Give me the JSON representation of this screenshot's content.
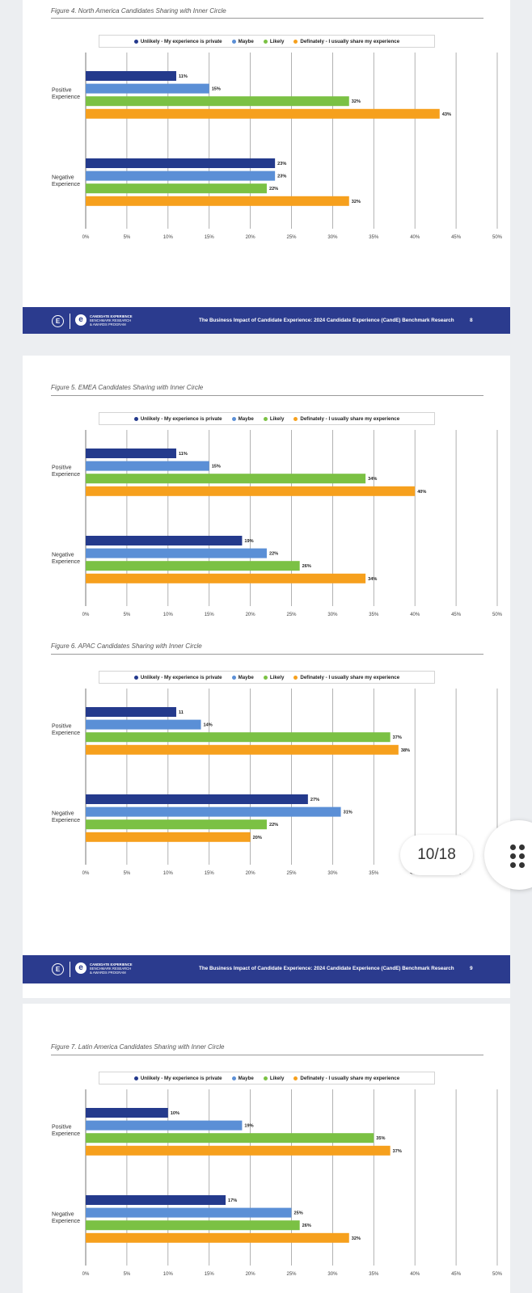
{
  "legend": [
    {
      "label": "Unlikely - My experience is private",
      "color": "#243a8c"
    },
    {
      "label": "Maybe",
      "color": "#5b8fd6"
    },
    {
      "label": "Likely",
      "color": "#7bc144"
    },
    {
      "label": "Definately - I usually share my experience",
      "color": "#f6a01d"
    }
  ],
  "footer": {
    "logo_letter": "E",
    "brand_line1": "CANDIDATE EXPERIENCE",
    "brand_line2": "BENCHMARK RESEARCH",
    "brand_line3": "& AWARDS PROGRAM",
    "title": "The Business Impact of Candidate Experience:  2024 Candidate Experience (CandE) Benchmark Research",
    "page_8": "8",
    "page_9": "9"
  },
  "viewer": {
    "page_indicator": "10/18",
    "menu_icon": "grid-dots-icon"
  },
  "chart_data": [
    {
      "type": "bar",
      "title": "Figure 4. North America Candidates Sharing with Inner Circle",
      "categories": [
        "Positive Experience",
        "Negative Experience"
      ],
      "series": [
        {
          "name": "Unlikely - My experience is private",
          "values": [
            11,
            23
          ],
          "labels": [
            "11%",
            "23%"
          ]
        },
        {
          "name": "Maybe",
          "values": [
            15,
            23
          ],
          "labels": [
            "15%",
            "23%"
          ]
        },
        {
          "name": "Likely",
          "values": [
            32,
            22
          ],
          "labels": [
            "32%",
            "22%"
          ]
        },
        {
          "name": "Definately - I usually share my experience",
          "values": [
            43,
            32
          ],
          "labels": [
            "43%",
            "32%"
          ]
        }
      ],
      "xlim": [
        0,
        50
      ],
      "ticks": [
        "0%",
        "5%",
        "10%",
        "15%",
        "20%",
        "25%",
        "30%",
        "35%",
        "40%",
        "45%",
        "50%"
      ],
      "orientation": "horizontal",
      "grid": true,
      "legend": "top"
    },
    {
      "type": "bar",
      "title": "Figure 5. EMEA Candidates Sharing with Inner Circle",
      "categories": [
        "Positive Experience",
        "Negative Experience"
      ],
      "series": [
        {
          "name": "Unlikely - My experience is private",
          "values": [
            11,
            19
          ],
          "labels": [
            "11%",
            "19%"
          ]
        },
        {
          "name": "Maybe",
          "values": [
            15,
            22
          ],
          "labels": [
            "15%",
            "22%"
          ]
        },
        {
          "name": "Likely",
          "values": [
            34,
            26
          ],
          "labels": [
            "34%",
            "26%"
          ]
        },
        {
          "name": "Definately - I usually share my experience",
          "values": [
            40,
            34
          ],
          "labels": [
            "40%",
            "34%"
          ]
        }
      ],
      "xlim": [
        0,
        50
      ],
      "ticks": [
        "0%",
        "5%",
        "10%",
        "15%",
        "20%",
        "25%",
        "30%",
        "35%",
        "40%",
        "45%",
        "50%"
      ],
      "orientation": "horizontal",
      "grid": true,
      "legend": "top"
    },
    {
      "type": "bar",
      "title": "Figure 6. APAC Candidates Sharing with Inner Circle",
      "categories": [
        "Positive Experience",
        "Negative Experience"
      ],
      "series": [
        {
          "name": "Unlikely - My experience is private",
          "values": [
            11,
            27
          ],
          "labels": [
            "11",
            "27%"
          ]
        },
        {
          "name": "Maybe",
          "values": [
            14,
            31
          ],
          "labels": [
            "14%",
            "31%"
          ]
        },
        {
          "name": "Likely",
          "values": [
            37,
            22
          ],
          "labels": [
            "37%",
            "22%"
          ]
        },
        {
          "name": "Definately - I usually share my experience",
          "values": [
            38,
            20
          ],
          "labels": [
            "38%",
            "20%"
          ]
        }
      ],
      "xlim": [
        0,
        50
      ],
      "ticks": [
        "0%",
        "5%",
        "10%",
        "15%",
        "20%",
        "25%",
        "30%",
        "35%",
        "40%",
        "45%",
        "50%"
      ],
      "orientation": "horizontal",
      "grid": true,
      "legend": "top"
    },
    {
      "type": "bar",
      "title": "Figure 7. Latin America Candidates Sharing with Inner Circle",
      "categories": [
        "Positive Experience",
        "Negative Experience"
      ],
      "series": [
        {
          "name": "Unlikely - My experience is private",
          "values": [
            10,
            17
          ],
          "labels": [
            "10%",
            "17%"
          ]
        },
        {
          "name": "Maybe",
          "values": [
            19,
            25
          ],
          "labels": [
            "19%",
            "25%"
          ]
        },
        {
          "name": "Likely",
          "values": [
            35,
            26
          ],
          "labels": [
            "35%",
            "26%"
          ]
        },
        {
          "name": "Definately - I usually share my experience",
          "values": [
            37,
            32
          ],
          "labels": [
            "37%",
            "32%"
          ]
        }
      ],
      "xlim": [
        0,
        50
      ],
      "ticks": [
        "0%",
        "5%",
        "10%",
        "15%",
        "20%",
        "25%",
        "30%",
        "35%",
        "40%",
        "45%",
        "50%"
      ],
      "orientation": "horizontal",
      "grid": true,
      "legend": "top"
    }
  ]
}
